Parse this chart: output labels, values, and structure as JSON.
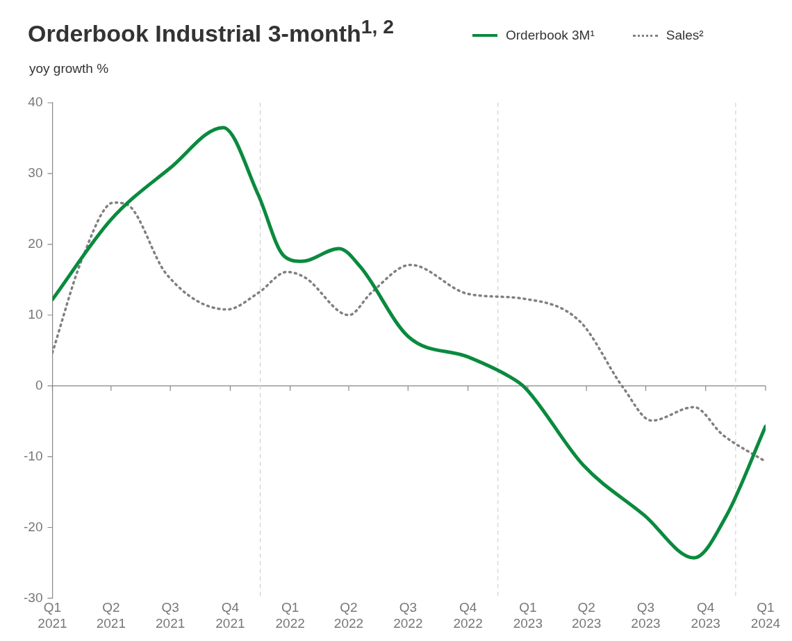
{
  "chart_data": {
    "type": "line",
    "title": "Orderbook Industrial 3-month$^{1, 2}$",
    "ylabel": "yoy growth %",
    "legend": "top right",
    "grid": false,
    "xlim": [
      "2021-01-01",
      "2024-01-01"
    ],
    "xticks": [
      {
        "value": "2021-01-01",
        "label": "Q1 2021"
      },
      {
        "value": "2021-04-01",
        "label": "Q2 2021"
      },
      {
        "value": "2021-07-01",
        "label": "Q3 2021"
      },
      {
        "value": "2021-10-01",
        "label": "Q4 2021"
      },
      {
        "value": "2022-01-01",
        "label": "Q1 2022"
      },
      {
        "value": "2022-04-01",
        "label": "Q2 2022"
      },
      {
        "value": "2022-07-01",
        "label": "Q3 2022"
      },
      {
        "value": "2022-10-01",
        "label": "Q4 2022"
      },
      {
        "value": "2023-01-01",
        "label": "Q1 2023"
      },
      {
        "value": "2023-04-01",
        "label": "Q2 2023"
      },
      {
        "value": "2023-07-01",
        "label": "Q3 2023"
      },
      {
        "value": "2023-10-01",
        "label": "Q4 2023"
      },
      {
        "value": "2024-01-01",
        "label": "Q1 2024"
      }
    ],
    "ylim": [
      -30,
      40
    ],
    "yticks": [
      -30,
      -20,
      -10,
      0,
      10,
      20,
      30,
      40
    ],
    "ref_lines": [
      {
        "axis": "y",
        "value": 0,
        "color": "#888888",
        "line_style": "solid"
      },
      {
        "axis": "x",
        "value": "2021-11-16",
        "color": "#c8c8c8",
        "line_style": "dashed"
      },
      {
        "axis": "x",
        "value": "2022-11-16",
        "color": "#c8c8c8",
        "line_style": "dashed"
      },
      {
        "axis": "x",
        "value": "2023-11-16",
        "color": "#c8c8c8",
        "line_style": "dashed"
      }
    ],
    "series": [
      {
        "name": "Orderbook 3M¹",
        "color": "#0a8a3e",
        "line_style": "solid",
        "x": [
          "2021-01-01",
          "2021-04-01",
          "2021-07-01",
          "2021-09-20",
          "2021-11-13",
          "2021-12-22",
          "2022-01-19",
          "2022-03-17",
          "2022-04-19",
          "2022-07-01",
          "2022-10-01",
          "2022-12-04",
          "2022-12-27",
          "2023-03-27",
          "2023-06-29",
          "2023-09-13",
          "2023-11-02",
          "2024-01-01"
        ],
        "values": [
          12.2,
          23.5,
          30.8,
          36.5,
          27,
          18.4,
          17.6,
          19.4,
          16.8,
          7,
          4.1,
          1.3,
          -0.2,
          -11.2,
          -18.3,
          -24.3,
          -18.3,
          -5.7
        ]
      },
      {
        "name": "Sales²",
        "color": "#808080",
        "line_style": "dotted",
        "x": [
          "2021-01-01",
          "2021-02-15",
          "2021-04-05",
          "2021-04-26",
          "2021-06-25",
          "2021-09-26",
          "2021-11-14",
          "2021-12-27",
          "2022-01-24",
          "2022-04-01",
          "2022-05-06",
          "2022-07-05",
          "2022-10-01",
          "2022-12-27",
          "2023-03-22",
          "2023-05-27",
          "2023-07-10",
          "2023-09-13",
          "2023-10-27",
          "2024-01-01"
        ],
        "values": [
          4.7,
          17.8,
          25.9,
          25.6,
          15.8,
          10.8,
          13.2,
          16.1,
          15.3,
          10,
          13.2,
          17.1,
          13,
          12.3,
          9.1,
          -0.2,
          -4.9,
          -3,
          -6.9,
          -10.7
        ]
      }
    ]
  }
}
